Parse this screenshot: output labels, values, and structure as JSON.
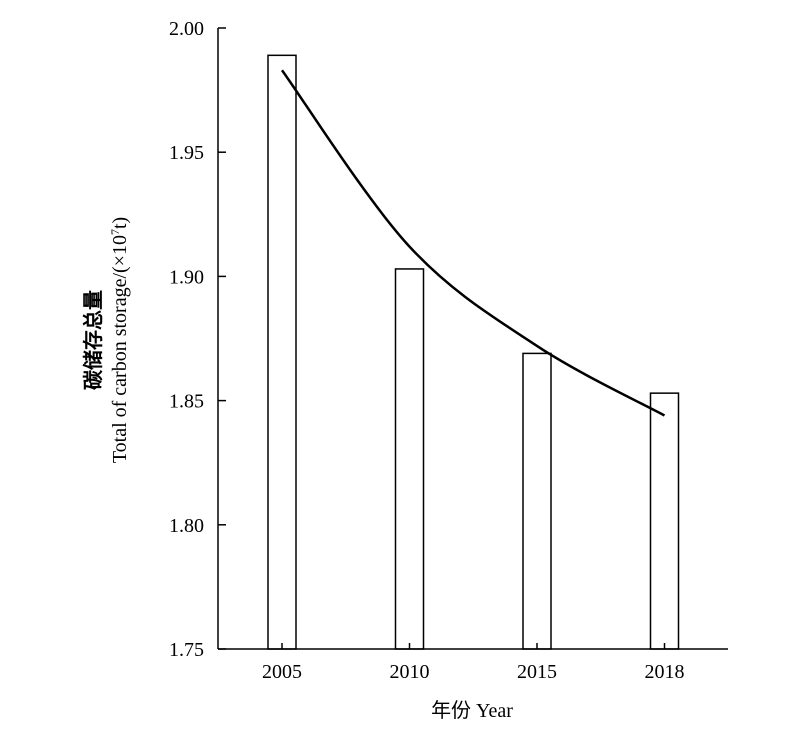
{
  "chart_data": {
    "type": "bar",
    "categories": [
      "2005",
      "2010",
      "2015",
      "2018"
    ],
    "values": [
      1.989,
      1.903,
      1.869,
      1.853
    ],
    "trend_line": {
      "type": "curve",
      "x": [
        "2005",
        "2010",
        "2015",
        "2018"
      ],
      "values": [
        1.983,
        1.912,
        1.872,
        1.844
      ]
    },
    "xlabel": "年份 Year",
    "ylabel_cn": "碳储存总量",
    "ylabel_en_prefix": "Total  of carbon storage/(×10",
    "ylabel_en_sup": "7",
    "ylabel_en_suffix": "t)",
    "ylim": [
      1.75,
      2.0
    ],
    "yticks": [
      "1.75",
      "1.80",
      "1.85",
      "1.90",
      "1.95",
      "2.00"
    ],
    "grid": false,
    "legend": "none",
    "bar_fill": "#ffffff",
    "stroke_color": "#000000"
  }
}
